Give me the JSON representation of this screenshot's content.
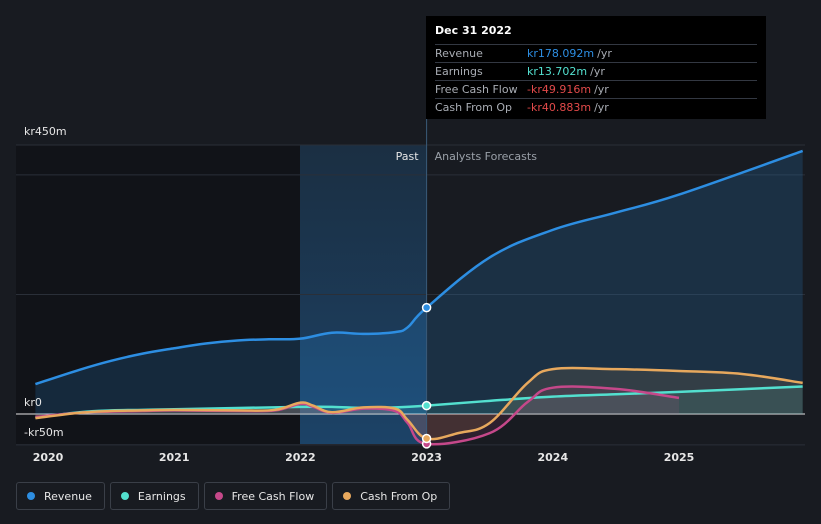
{
  "chart_data": {
    "type": "line",
    "y_tick_labels": [
      "kr450m",
      "kr0",
      "-kr50m"
    ],
    "ylim": [
      -50,
      450
    ],
    "x_tick_labels": [
      "2020",
      "2021",
      "2022",
      "2023",
      "2024",
      "2025"
    ],
    "xlim": [
      2019.9,
      2025.98
    ],
    "section_past": "Past",
    "section_forecast": "Analysts Forecasts",
    "divider_x": 2023.0,
    "series": [
      {
        "name": "Revenue",
        "color": "#2d8ee2",
        "points": [
          [
            2019.9,
            50
          ],
          [
            2020.25,
            74
          ],
          [
            2020.5,
            89
          ],
          [
            2020.75,
            101
          ],
          [
            2021.0,
            110
          ],
          [
            2021.25,
            118
          ],
          [
            2021.5,
            123
          ],
          [
            2021.75,
            125
          ],
          [
            2022.0,
            126
          ],
          [
            2022.25,
            136
          ],
          [
            2022.5,
            134
          ],
          [
            2022.75,
            137
          ],
          [
            2022.85,
            145
          ],
          [
            2023.0,
            178
          ],
          [
            2023.5,
            262
          ],
          [
            2024.0,
            308
          ],
          [
            2024.5,
            337
          ],
          [
            2025.0,
            367
          ],
          [
            2025.98,
            440
          ]
        ]
      },
      {
        "name": "Earnings",
        "color": "#53e0cf",
        "points": [
          [
            2019.9,
            -6
          ],
          [
            2020.25,
            3
          ],
          [
            2020.5,
            6
          ],
          [
            2020.75,
            7
          ],
          [
            2021.0,
            8
          ],
          [
            2021.5,
            10
          ],
          [
            2022.0,
            12
          ],
          [
            2022.25,
            12
          ],
          [
            2022.5,
            10
          ],
          [
            2022.75,
            11
          ],
          [
            2023.0,
            14
          ],
          [
            2023.5,
            22
          ],
          [
            2024.0,
            29
          ],
          [
            2024.5,
            33
          ],
          [
            2025.0,
            37
          ],
          [
            2025.98,
            46
          ]
        ]
      },
      {
        "name": "Free Cash Flow",
        "color": "#c5488a",
        "points": [
          [
            2019.9,
            -5
          ],
          [
            2020.25,
            2
          ],
          [
            2020.5,
            4
          ],
          [
            2020.75,
            5
          ],
          [
            2021.0,
            6
          ],
          [
            2021.5,
            5
          ],
          [
            2021.8,
            6
          ],
          [
            2022.0,
            17
          ],
          [
            2022.1,
            12
          ],
          [
            2022.25,
            2
          ],
          [
            2022.5,
            9
          ],
          [
            2022.75,
            5
          ],
          [
            2022.85,
            -15
          ],
          [
            2023.0,
            -50
          ],
          [
            2023.5,
            -32
          ],
          [
            2023.8,
            20
          ],
          [
            2024.0,
            44
          ],
          [
            2024.5,
            42
          ],
          [
            2025.0,
            27
          ]
        ]
      },
      {
        "name": "Cash From Op",
        "color": "#e7a85d",
        "points": [
          [
            2019.9,
            -7
          ],
          [
            2020.25,
            2
          ],
          [
            2020.5,
            5
          ],
          [
            2020.75,
            6
          ],
          [
            2021.0,
            7
          ],
          [
            2021.5,
            6
          ],
          [
            2021.8,
            7
          ],
          [
            2022.0,
            19
          ],
          [
            2022.1,
            14
          ],
          [
            2022.25,
            3
          ],
          [
            2022.5,
            11
          ],
          [
            2022.75,
            9
          ],
          [
            2022.85,
            -10
          ],
          [
            2023.0,
            -41
          ],
          [
            2023.25,
            -32
          ],
          [
            2023.5,
            -15
          ],
          [
            2023.8,
            52
          ],
          [
            2024.0,
            75
          ],
          [
            2024.5,
            75
          ],
          [
            2025.0,
            72
          ],
          [
            2025.5,
            67
          ],
          [
            2025.98,
            52
          ]
        ]
      }
    ]
  },
  "tooltip": {
    "date": "Dec 31 2022",
    "unit": "/yr",
    "rows": [
      {
        "name": "Revenue",
        "value": "kr178.092m",
        "color": "#2d8ee2"
      },
      {
        "name": "Earnings",
        "value": "kr13.702m",
        "color": "#53e0cf"
      },
      {
        "name": "Free Cash Flow",
        "value": "-kr49.916m",
        "color": "#e24a4a"
      },
      {
        "name": "Cash From Op",
        "value": "-kr40.883m",
        "color": "#e24a4a"
      }
    ]
  },
  "legend": [
    {
      "label": "Revenue",
      "color": "#2d8ee2"
    },
    {
      "label": "Earnings",
      "color": "#53e0cf"
    },
    {
      "label": "Free Cash Flow",
      "color": "#c5488a"
    },
    {
      "label": "Cash From Op",
      "color": "#e7a85d"
    }
  ]
}
